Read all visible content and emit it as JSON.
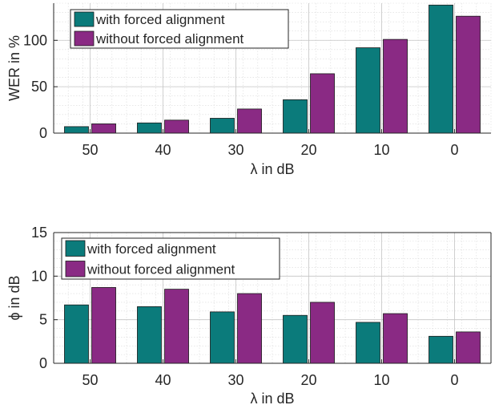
{
  "chart_data": [
    {
      "type": "bar",
      "categories": [
        "50",
        "40",
        "30",
        "20",
        "10",
        "0"
      ],
      "series": [
        {
          "name": "with forced alignment",
          "values": [
            7,
            11,
            16,
            36,
            92,
            138
          ],
          "color": "#0b7b7b"
        },
        {
          "name": "without forced alignment",
          "values": [
            10,
            14,
            26,
            64,
            101,
            126
          ],
          "color": "#8a2a84"
        }
      ],
      "xlabel": "λ in dB",
      "ylabel": "WER in %",
      "ylim": [
        0,
        140
      ],
      "yticks": [
        "0",
        "50",
        "100"
      ],
      "grid": true,
      "legend_position": "top-left"
    },
    {
      "type": "bar",
      "categories": [
        "50",
        "40",
        "30",
        "20",
        "10",
        "0"
      ],
      "series": [
        {
          "name": "with forced alignment",
          "values": [
            6.7,
            6.5,
            5.9,
            5.5,
            4.7,
            3.1
          ],
          "color": "#0b7b7b"
        },
        {
          "name": "without forced alignment",
          "values": [
            8.7,
            8.5,
            8.0,
            7.0,
            5.7,
            3.6
          ],
          "color": "#8a2a84"
        }
      ],
      "xlabel": "λ in dB",
      "ylabel": "ϕ in dB",
      "ylim": [
        0,
        15
      ],
      "yticks": [
        "0",
        "5",
        "10",
        "15"
      ],
      "grid": true,
      "legend_position": "top-left"
    }
  ]
}
